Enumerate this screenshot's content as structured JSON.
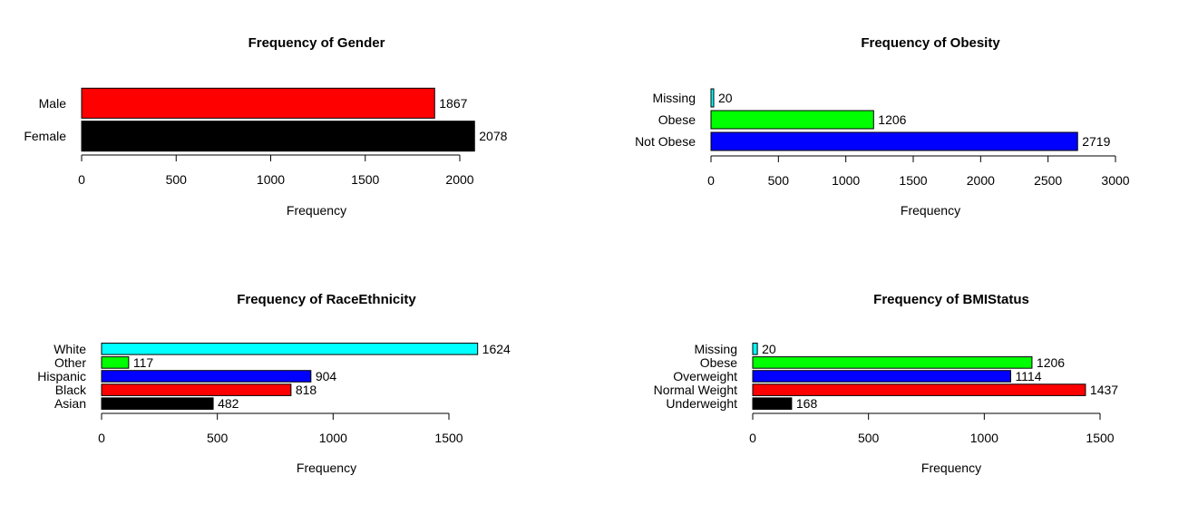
{
  "chart_data": [
    {
      "type": "bar",
      "orientation": "horizontal",
      "title": "Frequency of Gender",
      "xlabel": "Frequency",
      "ylabel": "",
      "categories": [
        "Female",
        "Male"
      ],
      "values": [
        2078,
        1867
      ],
      "colors": [
        "#000000",
        "#ff0000"
      ],
      "xlim": [
        0,
        2000
      ],
      "xticks": [
        0,
        500,
        1000,
        1500,
        2000
      ],
      "grid": false,
      "value_labels": true
    },
    {
      "type": "bar",
      "orientation": "horizontal",
      "title": "Frequency of Obesity",
      "xlabel": "Frequency",
      "ylabel": "",
      "categories": [
        "Not Obese",
        "Obese",
        "Missing"
      ],
      "values": [
        2719,
        1206,
        20
      ],
      "colors": [
        "#0000ff",
        "#00ff00",
        "#00ffff"
      ],
      "xlim": [
        0,
        3000
      ],
      "xticks": [
        0,
        500,
        1000,
        1500,
        2000,
        2500,
        3000
      ],
      "grid": false,
      "value_labels": true
    },
    {
      "type": "bar",
      "orientation": "horizontal",
      "title": "Frequency of RaceEthnicity",
      "xlabel": "Frequency",
      "ylabel": "",
      "categories": [
        "Asian",
        "Black",
        "Hispanic",
        "Other",
        "White"
      ],
      "values": [
        482,
        818,
        904,
        117,
        1624
      ],
      "colors": [
        "#000000",
        "#ff0000",
        "#0000ff",
        "#00ff00",
        "#00ffff"
      ],
      "xlim": [
        0,
        1500
      ],
      "xticks": [
        0,
        500,
        1000,
        1500
      ],
      "grid": false,
      "value_labels": true
    },
    {
      "type": "bar",
      "orientation": "horizontal",
      "title": "Frequency of BMIStatus",
      "xlabel": "Frequency",
      "ylabel": "",
      "categories": [
        "Underweight",
        "Normal Weight",
        "Overweight",
        "Obese",
        "Missing"
      ],
      "values": [
        168,
        1437,
        1114,
        1206,
        20
      ],
      "colors": [
        "#000000",
        "#ff0000",
        "#0000ff",
        "#00ff00",
        "#00ffff"
      ],
      "xlim": [
        0,
        1500
      ],
      "xticks": [
        0,
        500,
        1000,
        1500
      ],
      "grid": false,
      "value_labels": true
    }
  ]
}
